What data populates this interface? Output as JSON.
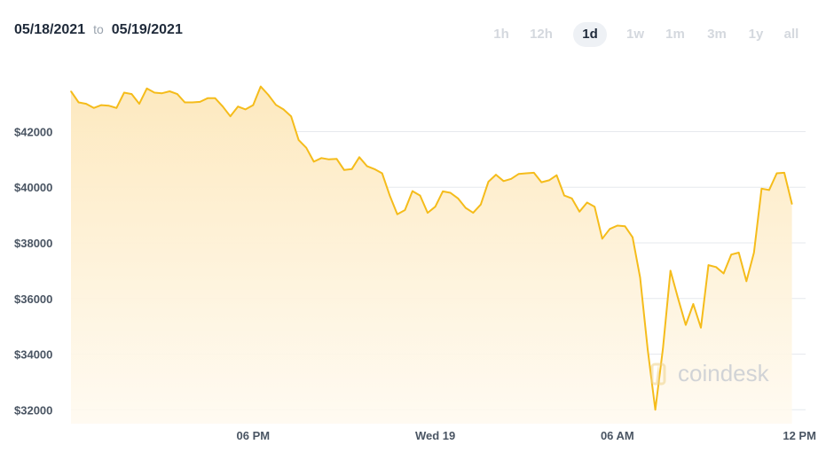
{
  "header": {
    "date_from": "05/18/2021",
    "date_to_word": "to",
    "date_to": "05/19/2021"
  },
  "range_buttons": [
    {
      "label": "1h",
      "active": false
    },
    {
      "label": "12h",
      "active": false
    },
    {
      "label": "1d",
      "active": true
    },
    {
      "label": "1w",
      "active": false
    },
    {
      "label": "1m",
      "active": false
    },
    {
      "label": "3m",
      "active": false
    },
    {
      "label": "1y",
      "active": false
    },
    {
      "label": "all",
      "active": false
    }
  ],
  "watermark": "coindesk",
  "colors": {
    "line": "#f5bc1b",
    "fill_top": "#fde9bf",
    "fill_bottom": "#fffaf0",
    "grid": "#e6e9ee",
    "axis_text": "#4a5563"
  },
  "chart_data": {
    "type": "area",
    "x_unit": "hours since 05/18/2021 12:00",
    "ylim": [
      31500,
      44500
    ],
    "xlim": [
      0,
      24.2
    ],
    "y_ticks": [
      {
        "value": 32000,
        "label": "$32000"
      },
      {
        "value": 34000,
        "label": "$34000"
      },
      {
        "value": 36000,
        "label": "$36000"
      },
      {
        "value": 38000,
        "label": "$38000"
      },
      {
        "value": 40000,
        "label": "$40000"
      },
      {
        "value": 42000,
        "label": "$42000"
      }
    ],
    "x_ticks": [
      {
        "value": 6,
        "label": "06 PM"
      },
      {
        "value": 12,
        "label": "Wed 19"
      },
      {
        "value": 18,
        "label": "06 AM"
      },
      {
        "value": 24,
        "label": "12 PM"
      }
    ],
    "grid": true,
    "series": [
      {
        "values": [
          [
            0.0,
            43450
          ],
          [
            0.25,
            43050
          ],
          [
            0.5,
            43000
          ],
          [
            0.75,
            42850
          ],
          [
            1.0,
            42950
          ],
          [
            1.25,
            42930
          ],
          [
            1.5,
            42850
          ],
          [
            1.75,
            43400
          ],
          [
            2.0,
            43350
          ],
          [
            2.25,
            43000
          ],
          [
            2.5,
            43550
          ],
          [
            2.75,
            43400
          ],
          [
            3.0,
            43380
          ],
          [
            3.25,
            43450
          ],
          [
            3.5,
            43350
          ],
          [
            3.75,
            43050
          ],
          [
            4.0,
            43050
          ],
          [
            4.25,
            43070
          ],
          [
            4.5,
            43200
          ],
          [
            4.75,
            43200
          ],
          [
            5.0,
            42900
          ],
          [
            5.25,
            42550
          ],
          [
            5.5,
            42900
          ],
          [
            5.75,
            42800
          ],
          [
            6.0,
            42950
          ],
          [
            6.25,
            43620
          ],
          [
            6.5,
            43320
          ],
          [
            6.75,
            42960
          ],
          [
            7.0,
            42800
          ],
          [
            7.25,
            42550
          ],
          [
            7.5,
            41700
          ],
          [
            7.75,
            41420
          ],
          [
            8.0,
            40920
          ],
          [
            8.25,
            41050
          ],
          [
            8.5,
            41000
          ],
          [
            8.75,
            41020
          ],
          [
            9.0,
            40620
          ],
          [
            9.25,
            40650
          ],
          [
            9.5,
            41080
          ],
          [
            9.75,
            40760
          ],
          [
            10.0,
            40650
          ],
          [
            10.25,
            40500
          ],
          [
            10.5,
            39700
          ],
          [
            10.75,
            39030
          ],
          [
            11.0,
            39180
          ],
          [
            11.25,
            39860
          ],
          [
            11.5,
            39700
          ],
          [
            11.75,
            39080
          ],
          [
            12.0,
            39300
          ],
          [
            12.25,
            39850
          ],
          [
            12.5,
            39800
          ],
          [
            12.75,
            39600
          ],
          [
            13.0,
            39260
          ],
          [
            13.25,
            39080
          ],
          [
            13.5,
            39380
          ],
          [
            13.75,
            40200
          ],
          [
            14.0,
            40450
          ],
          [
            14.25,
            40220
          ],
          [
            14.5,
            40300
          ],
          [
            14.75,
            40480
          ],
          [
            15.0,
            40500
          ],
          [
            15.25,
            40520
          ],
          [
            15.5,
            40180
          ],
          [
            15.75,
            40250
          ],
          [
            16.0,
            40430
          ],
          [
            16.25,
            39700
          ],
          [
            16.5,
            39600
          ],
          [
            16.75,
            39120
          ],
          [
            17.0,
            39450
          ],
          [
            17.25,
            39300
          ],
          [
            17.5,
            38150
          ],
          [
            17.75,
            38500
          ],
          [
            18.0,
            38620
          ],
          [
            18.25,
            38600
          ],
          [
            18.5,
            38200
          ],
          [
            18.75,
            36750
          ],
          [
            19.0,
            34150
          ],
          [
            19.25,
            32000
          ],
          [
            19.5,
            34200
          ],
          [
            19.75,
            37000
          ],
          [
            20.0,
            36000
          ],
          [
            20.25,
            35050
          ],
          [
            20.5,
            35800
          ],
          [
            20.75,
            34950
          ],
          [
            21.0,
            37200
          ],
          [
            21.25,
            37130
          ],
          [
            21.5,
            36900
          ],
          [
            21.75,
            37580
          ],
          [
            22.0,
            37650
          ],
          [
            22.25,
            36620
          ],
          [
            22.5,
            37650
          ],
          [
            22.75,
            39950
          ],
          [
            23.0,
            39900
          ],
          [
            23.25,
            40500
          ],
          [
            23.5,
            40520
          ],
          [
            23.75,
            39400
          ]
        ]
      }
    ]
  }
}
